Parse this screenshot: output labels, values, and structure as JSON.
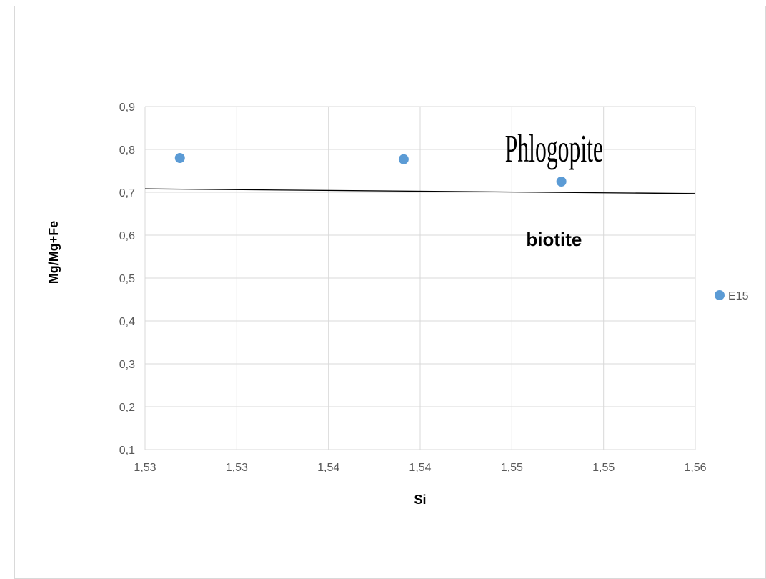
{
  "chart_data": {
    "type": "scatter",
    "title": "",
    "xlabel": "Si",
    "ylabel": "Mg/Mg+Fe",
    "xlim": [
      1.53,
      1.56
    ],
    "ylim": [
      0.1,
      0.9
    ],
    "x_tick_labels": [
      "1,53",
      "1,53",
      "1,54",
      "1,54",
      "1,55",
      "1,55",
      "1,56"
    ],
    "y_tick_labels": [
      "0,1",
      "0,2",
      "0,3",
      "0,4",
      "0,5",
      "0,6",
      "0,7",
      "0,8",
      "0,9"
    ],
    "grid": true,
    "legend_position": "right",
    "series": [
      {
        "name": "E15",
        "color": "#5b9bd5",
        "points": [
          {
            "x": 1.5319,
            "y": 0.78
          },
          {
            "x": 1.5441,
            "y": 0.777
          },
          {
            "x": 1.5527,
            "y": 0.725
          }
        ]
      }
    ],
    "boundary_line": {
      "color": "#000000",
      "points": [
        {
          "x": 1.53,
          "y": 0.708
        },
        {
          "x": 1.56,
          "y": 0.697
        }
      ]
    },
    "annotations": [
      {
        "text": "Phlogopite",
        "x": 1.5523,
        "y": 0.795
      },
      {
        "text": "biotite",
        "x": 1.5523,
        "y": 0.59
      }
    ]
  }
}
